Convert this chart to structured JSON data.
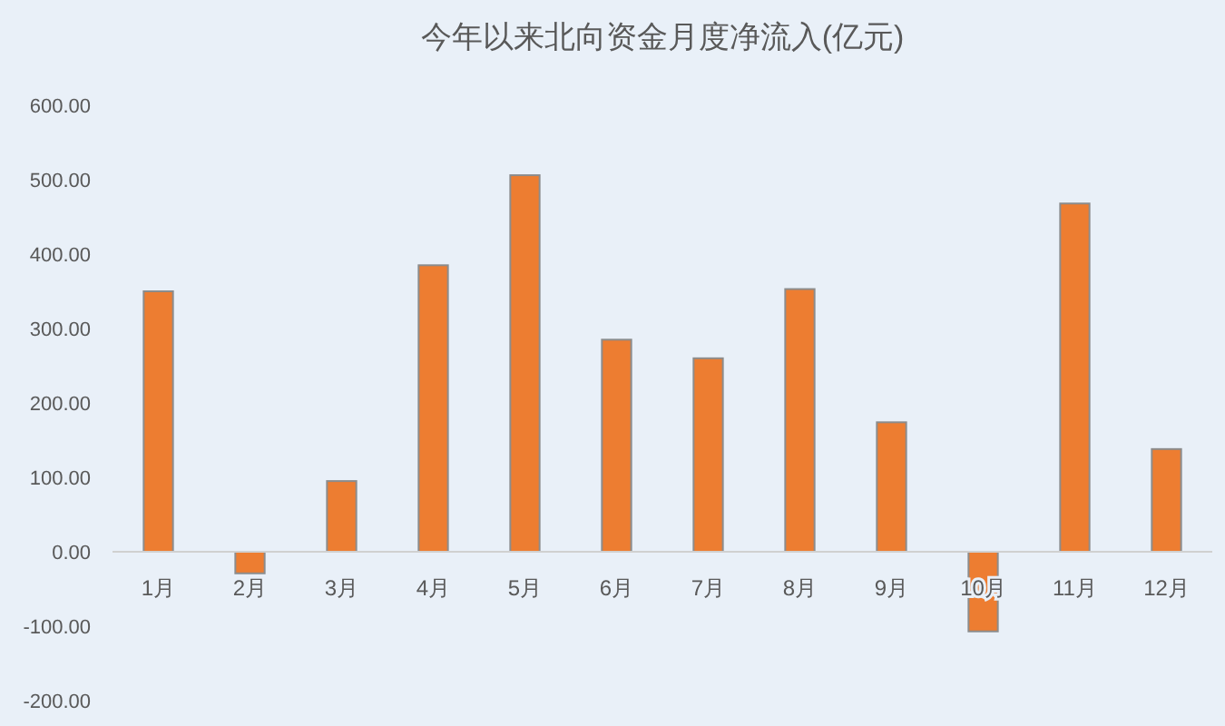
{
  "chart_data": {
    "type": "bar",
    "title": "今年以来北向资金月度净流入(亿元)",
    "categories": [
      "1月",
      "2月",
      "3月",
      "4月",
      "5月",
      "6月",
      "7月",
      "8月",
      "9月",
      "10月",
      "11月",
      "12月"
    ],
    "values": [
      350,
      -29,
      95,
      385,
      506,
      285,
      260,
      353,
      174,
      -107,
      468,
      138
    ],
    "color": "#ed7d31",
    "ylim": [
      -200,
      600
    ],
    "yticks": [
      {
        "value": -200,
        "label": "-200.00"
      },
      {
        "value": -100,
        "label": "-100.00"
      },
      {
        "value": 0,
        "label": "0.00"
      },
      {
        "value": 100,
        "label": "100.00"
      },
      {
        "value": 200,
        "label": "200.00"
      },
      {
        "value": 300,
        "label": "300.00"
      },
      {
        "value": 400,
        "label": "400.00"
      },
      {
        "value": 500,
        "label": "500.00"
      },
      {
        "value": 600,
        "label": "600.00"
      }
    ],
    "grid": false
  }
}
